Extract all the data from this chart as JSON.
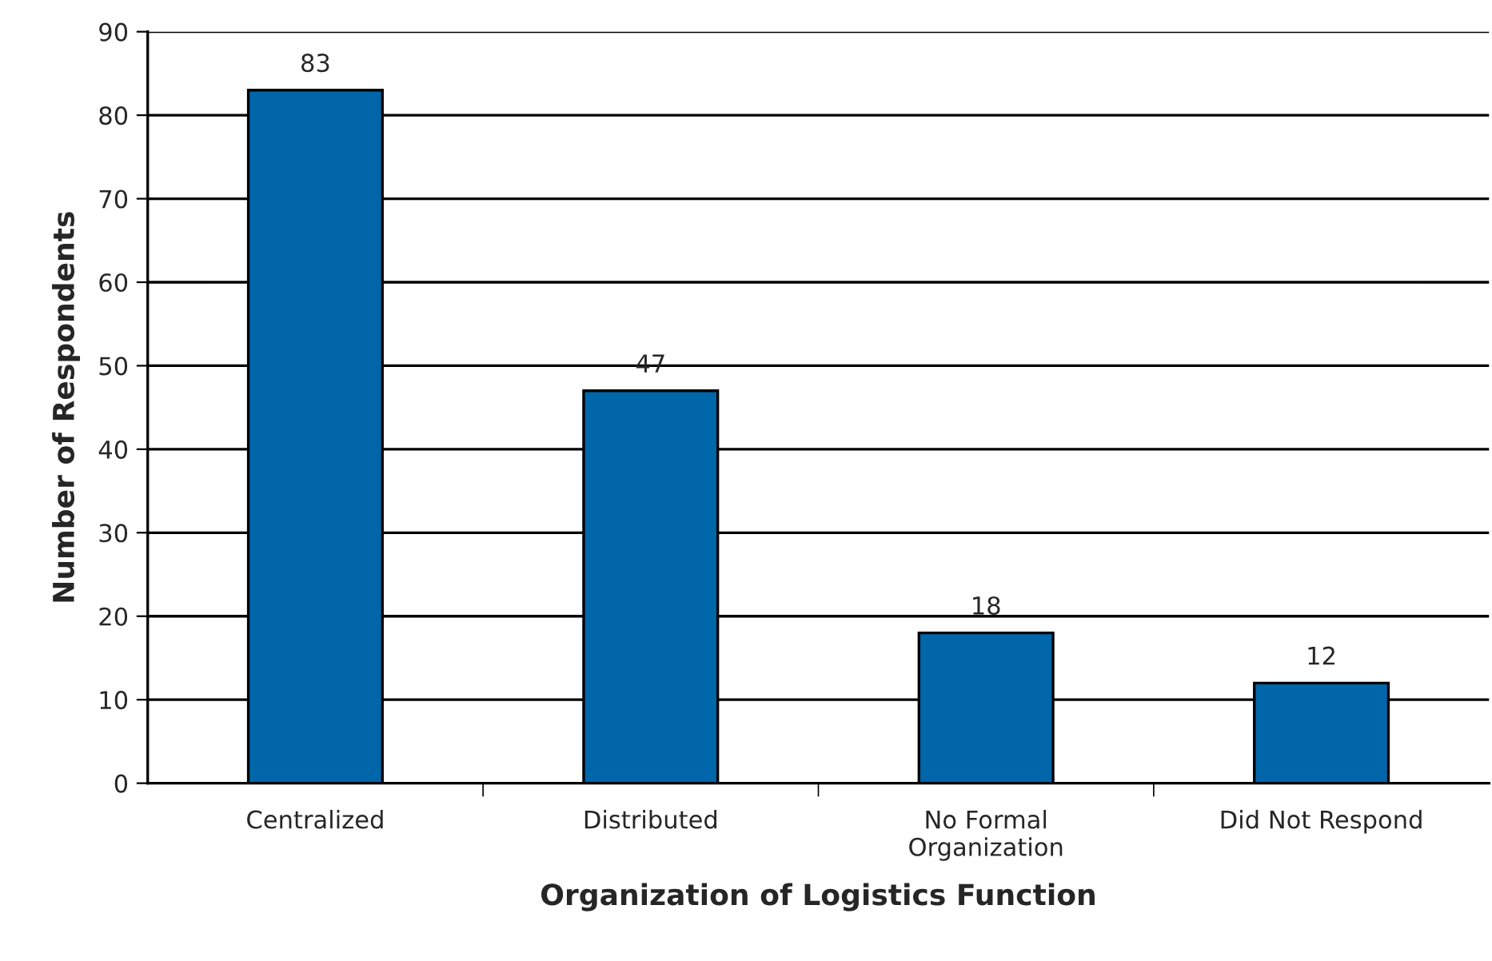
{
  "chart_data": {
    "type": "bar",
    "categories": [
      "Centralized",
      "Distributed",
      "No Formal\nOrganization",
      "Did Not Respond"
    ],
    "values": [
      83,
      47,
      18,
      12
    ],
    "color": "#0066aa",
    "xlabel": "Organization of Logistics Function",
    "ylabel": "Number of Respondents",
    "ylim": [
      0,
      90
    ],
    "yticks": [
      0,
      10,
      20,
      30,
      40,
      50,
      60,
      70,
      80,
      90
    ],
    "grid": "y",
    "data_labels": true
  }
}
